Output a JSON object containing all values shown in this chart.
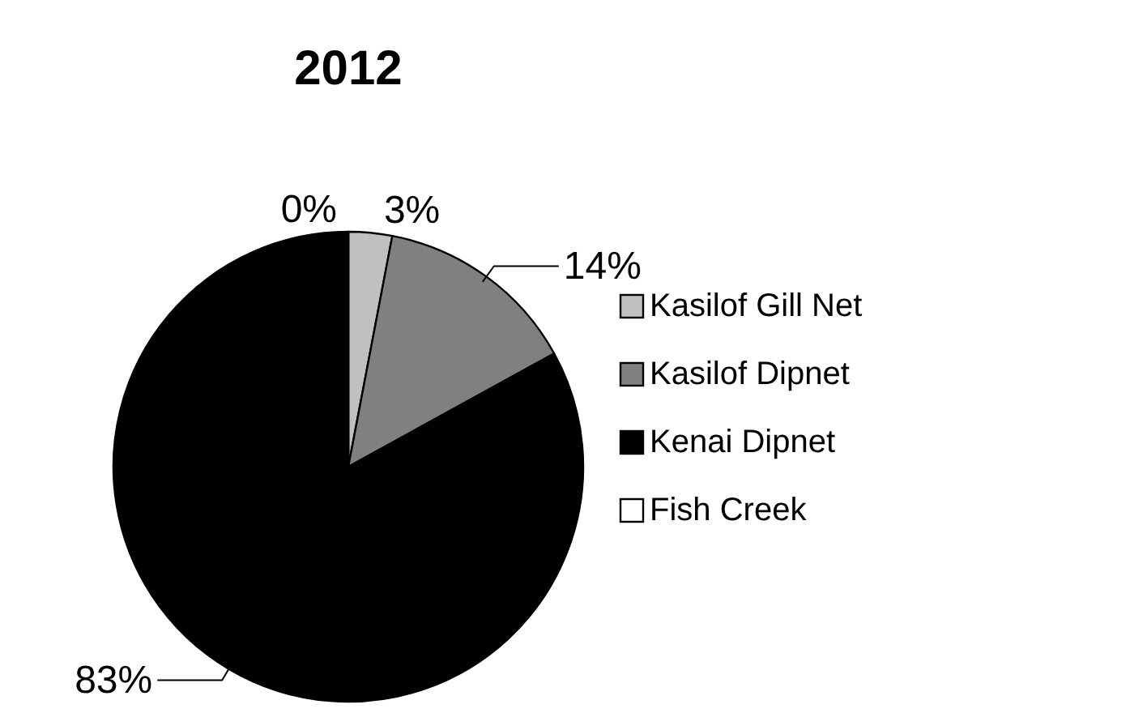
{
  "chart_data": {
    "type": "pie",
    "title": "2012",
    "categories": [
      "Kasilof Gill Net",
      "Kasilof Dipnet",
      "Kenai Dipnet",
      "Fish Creek"
    ],
    "values": [
      3,
      14,
      83,
      0
    ],
    "colors": [
      "#c0c0c0",
      "#808080",
      "#000000",
      "#ffffff"
    ],
    "value_labels": [
      "3%",
      "14%",
      "83%",
      "0%"
    ],
    "legend": "right"
  }
}
